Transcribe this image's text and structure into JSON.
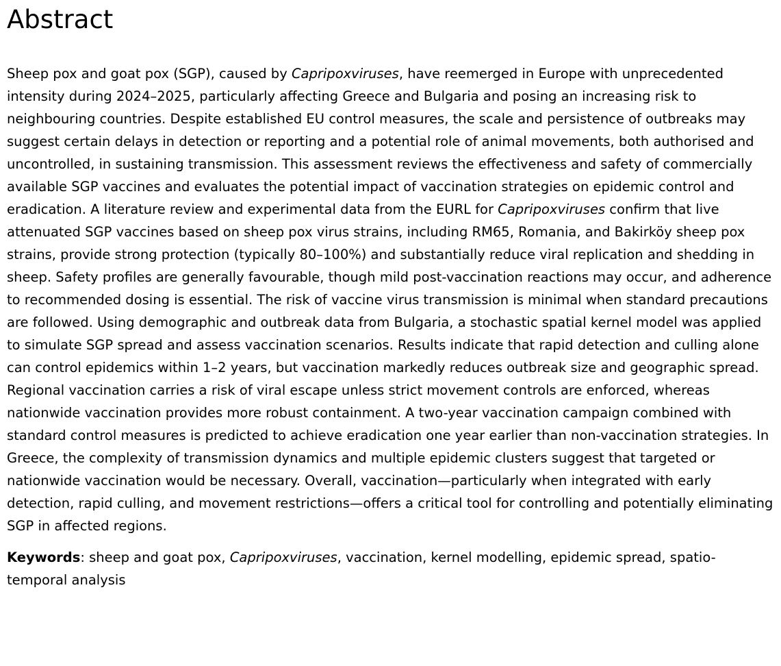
{
  "page": {
    "background_color": "#ffffff",
    "text_color": "#000000"
  },
  "abstract": {
    "heading": "Abstract",
    "paragraph_runs": [
      {
        "text": "Sheep pox and goat pox (SGP), caused by "
      },
      {
        "text": "Capripoxviruses",
        "italic": true
      },
      {
        "text": ", have reemerged in Europe with unprecedented intensity during 2024–2025, particularly affecting Greece and Bulgaria and posing an increasing risk to neighbouring countries. Despite established EU control measures, the scale and persistence of outbreaks may suggest certain delays in detection or reporting and a potential role of animal movements, both authorised and uncontrolled, in sustaining transmission. This assessment reviews the effectiveness and safety of commercially available SGP vaccines and evaluates the potential impact of vaccination strategies on epidemic control and eradication. A literature review and experimental data from the EURL for "
      },
      {
        "text": "Capripoxviruses",
        "italic": true
      },
      {
        "text": " confirm that live attenuated SGP vaccines based on sheep pox virus strains, including RM65, Romania, and Bakirköy sheep pox strains, provide strong protection (typically 80–100%) and substantially reduce viral replication and shedding in sheep. Safety profiles are generally favourable, though mild post-vaccination reactions may occur, and adherence to recommended dosing is essential. The risk of vaccine virus transmission is minimal when standard precautions are followed. Using demographic and outbreak data from Bulgaria, a stochastic spatial kernel model was applied to simulate SGP spread and assess vaccination scenarios. Results indicate that rapid detection and culling alone can control epidemics within 1–2 years, but vaccination markedly reduces outbreak size and geographic spread. Regional vaccination carries a risk of viral escape unless strict movement controls are enforced, whereas nationwide vaccination provides more robust containment. A two-year vaccination campaign combined with standard control measures is predicted to achieve eradication one year earlier than non-vaccination strategies. In Greece, the complexity of transmission dynamics and multiple epidemic clusters suggest that targeted or nationwide vaccination would be necessary. Overall, vaccination—particularly when integrated with early detection, rapid culling, and movement restrictions—offers a critical tool for controlling and potentially eliminating SGP in affected regions."
      }
    ],
    "keywords_runs": [
      {
        "text": "Keywords",
        "bold": true
      },
      {
        "text": ": sheep and goat pox, "
      },
      {
        "text": "Capripoxviruses",
        "italic": true
      },
      {
        "text": ", vaccination, kernel modelling, epidemic spread, spatio-temporal analysis"
      }
    ]
  }
}
